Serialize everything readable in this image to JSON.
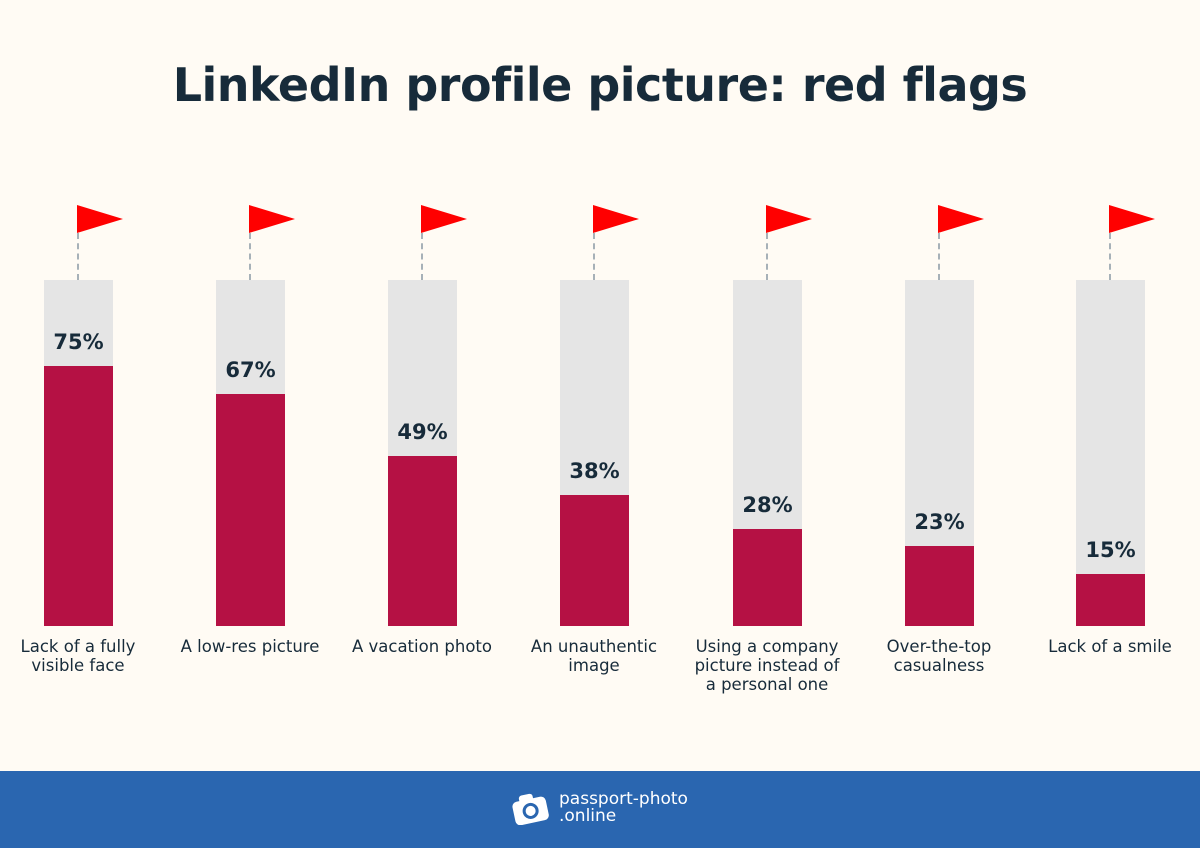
{
  "title": "LinkedIn profile picture: red flags",
  "colors": {
    "background": "#fffbf4",
    "bar_fill": "#b51144",
    "bar_track": "#e5e5e5",
    "flag": "#ff0000",
    "text": "#172b3a",
    "footer": "#2a66b0"
  },
  "bars": [
    {
      "label": "Lack of a fully visible face",
      "value": 75,
      "pct": "75%"
    },
    {
      "label": "A low-res picture",
      "value": 67,
      "pct": "67%"
    },
    {
      "label": "A vacation photo",
      "value": 49,
      "pct": "49%"
    },
    {
      "label": "An unauthentic image",
      "value": 38,
      "pct": "38%"
    },
    {
      "label": "Using a company picture instead of a personal one",
      "value": 28,
      "pct": "28%"
    },
    {
      "label": "Over-the-top casualness",
      "value": 23,
      "pct": "23%"
    },
    {
      "label": "Lack of a smile",
      "value": 15,
      "pct": "15%"
    }
  ],
  "footer": {
    "logo_icon": "camera-icon",
    "brand_line1": "passport-photo",
    "brand_line2": ".online"
  },
  "chart_data": {
    "type": "bar",
    "title": "LinkedIn profile picture: red flags",
    "categories": [
      "Lack of a fully visible face",
      "A low-res picture",
      "A vacation photo",
      "An unauthentic image",
      "Using a company picture instead of a personal one",
      "Over-the-top casualness",
      "Lack of a smile"
    ],
    "values": [
      75,
      67,
      49,
      38,
      28,
      23,
      15
    ],
    "xlabel": "",
    "ylabel": "",
    "ylim": [
      0,
      100
    ],
    "unit": "%",
    "grid": false,
    "legend": null,
    "data_labels": true
  }
}
